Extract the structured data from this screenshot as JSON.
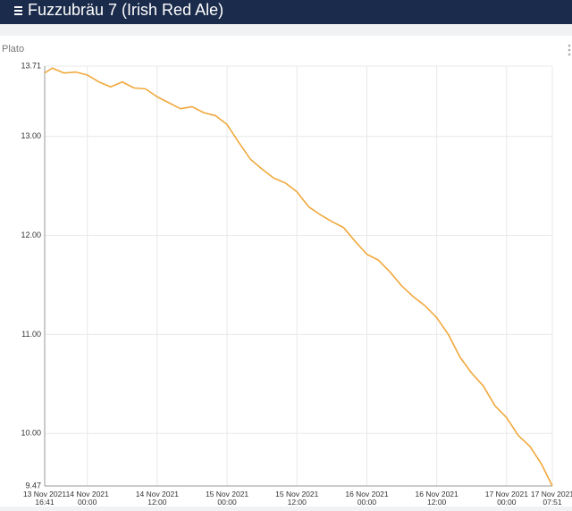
{
  "header": {
    "title": "Fuzzubräu 7 (Irish Red Ale)"
  },
  "chart_data": {
    "type": "line",
    "y_label": "Plato",
    "x": [
      "2021-11-13T16:41",
      "2021-11-13T18:00",
      "2021-11-13T20:00",
      "2021-11-13T22:00",
      "2021-11-14T00:00",
      "2021-11-14T02:00",
      "2021-11-14T04:00",
      "2021-11-14T06:00",
      "2021-11-14T08:00",
      "2021-11-14T10:00",
      "2021-11-14T12:00",
      "2021-11-14T14:00",
      "2021-11-14T16:00",
      "2021-11-14T18:00",
      "2021-11-14T20:00",
      "2021-11-14T22:00",
      "2021-11-15T00:00",
      "2021-11-15T02:00",
      "2021-11-15T04:00",
      "2021-11-15T06:00",
      "2021-11-15T08:00",
      "2021-11-15T10:00",
      "2021-11-15T12:00",
      "2021-11-15T14:00",
      "2021-11-15T16:00",
      "2021-11-15T18:00",
      "2021-11-15T20:00",
      "2021-11-15T22:00",
      "2021-11-16T00:00",
      "2021-11-16T02:00",
      "2021-11-16T04:00",
      "2021-11-16T06:00",
      "2021-11-16T08:00",
      "2021-11-16T10:00",
      "2021-11-16T12:00",
      "2021-11-16T14:00",
      "2021-11-16T16:00",
      "2021-11-16T18:00",
      "2021-11-16T20:00",
      "2021-11-16T22:00",
      "2021-11-17T00:00",
      "2021-11-17T02:00",
      "2021-11-17T04:00",
      "2021-11-17T06:00",
      "2021-11-17T07:51"
    ],
    "series": [
      {
        "color": "#f0a83c",
        "values": [
          13.64,
          13.69,
          13.64,
          13.65,
          13.62,
          13.55,
          13.5,
          13.55,
          13.49,
          13.48,
          13.4,
          13.34,
          13.28,
          13.3,
          13.24,
          13.21,
          13.12,
          12.94,
          12.77,
          12.67,
          12.58,
          12.53,
          12.44,
          12.29,
          12.21,
          12.14,
          12.08,
          11.94,
          11.81,
          11.75,
          11.63,
          11.49,
          11.38,
          11.29,
          11.17,
          11.0,
          10.77,
          10.61,
          10.48,
          10.28,
          10.16,
          9.98,
          9.87,
          9.69,
          9.47
        ]
      }
    ],
    "xlim": [
      "2021-11-13T16:41",
      "2021-11-17T07:51"
    ],
    "xticks": [
      {
        "value": "2021-11-13T16:41",
        "label": "13 Nov 2021 16:41"
      },
      {
        "value": "2021-11-14T00:00",
        "label": "14 Nov 2021 00:00"
      },
      {
        "value": "2021-11-14T12:00",
        "label": "14 Nov 2021 12:00"
      },
      {
        "value": "2021-11-15T00:00",
        "label": "15 Nov 2021 00:00"
      },
      {
        "value": "2021-11-15T12:00",
        "label": "15 Nov 2021 12:00"
      },
      {
        "value": "2021-11-16T00:00",
        "label": "16 Nov 2021 00:00"
      },
      {
        "value": "2021-11-16T12:00",
        "label": "16 Nov 2021 12:00"
      },
      {
        "value": "2021-11-17T00:00",
        "label": "17 Nov 2021 00:00"
      },
      {
        "value": "2021-11-17T07:51",
        "label": "17 Nov 2021 07:51"
      }
    ],
    "ylim": [
      9.47,
      13.71
    ],
    "yticks": [
      9.47,
      {
        "value": 10,
        "label": "10.00"
      },
      {
        "value": 11,
        "label": "11.00"
      },
      {
        "value": 12,
        "label": "12.00"
      },
      {
        "value": 13,
        "label": "13.00"
      },
      13.71
    ],
    "grid": true
  }
}
